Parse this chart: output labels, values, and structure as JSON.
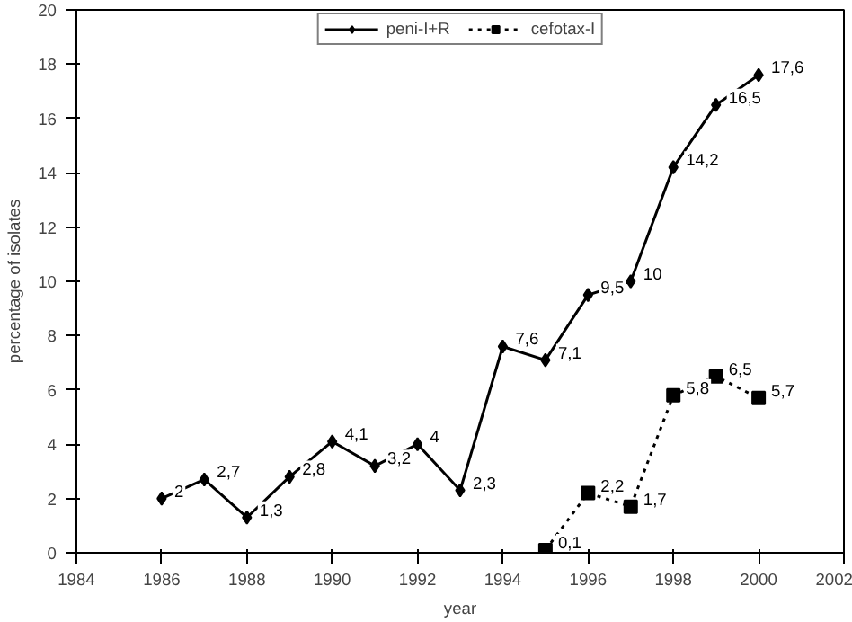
{
  "chart_data": {
    "type": "line",
    "xlabel": "year",
    "ylabel": "percentage of isolates",
    "xlim": [
      1984,
      2002
    ],
    "xticks": [
      1984,
      1986,
      1988,
      1990,
      1992,
      1994,
      1996,
      1998,
      2000,
      2002
    ],
    "ylim": [
      0,
      20
    ],
    "yticks": [
      0,
      2,
      4,
      6,
      8,
      10,
      12,
      14,
      16,
      18,
      20
    ],
    "grid": false,
    "legend": "top",
    "series": [
      {
        "name": "peni-I+R",
        "color": "#000000",
        "marker": "diamond",
        "line_style": "solid",
        "x": [
          1986,
          1987,
          1988,
          1989,
          1990,
          1991,
          1992,
          1993,
          1994,
          1995,
          1996,
          1997,
          1998,
          1999,
          2000
        ],
        "values": [
          2,
          2.7,
          1.3,
          2.8,
          4.1,
          3.2,
          4,
          2.3,
          7.6,
          7.1,
          9.5,
          10,
          14.2,
          16.5,
          17.6
        ],
        "value_labels": [
          "2",
          "2,7",
          "1,3",
          "2,8",
          "4,1",
          "3,2",
          "4",
          "2,3",
          "7,6",
          "7,1",
          "9,5",
          "10",
          "14,2",
          "16,5",
          "17,6"
        ]
      },
      {
        "name": "cefotax-I",
        "color": "#000000",
        "marker": "square",
        "line_style": "dotted",
        "x": [
          1995,
          1996,
          1997,
          1998,
          1999,
          2000
        ],
        "values": [
          0.1,
          2.2,
          1.7,
          5.8,
          6.5,
          5.7
        ],
        "value_labels": [
          "0,1",
          "2,2",
          "1,7",
          "5,8",
          "6,5",
          "5,7"
        ]
      }
    ]
  }
}
